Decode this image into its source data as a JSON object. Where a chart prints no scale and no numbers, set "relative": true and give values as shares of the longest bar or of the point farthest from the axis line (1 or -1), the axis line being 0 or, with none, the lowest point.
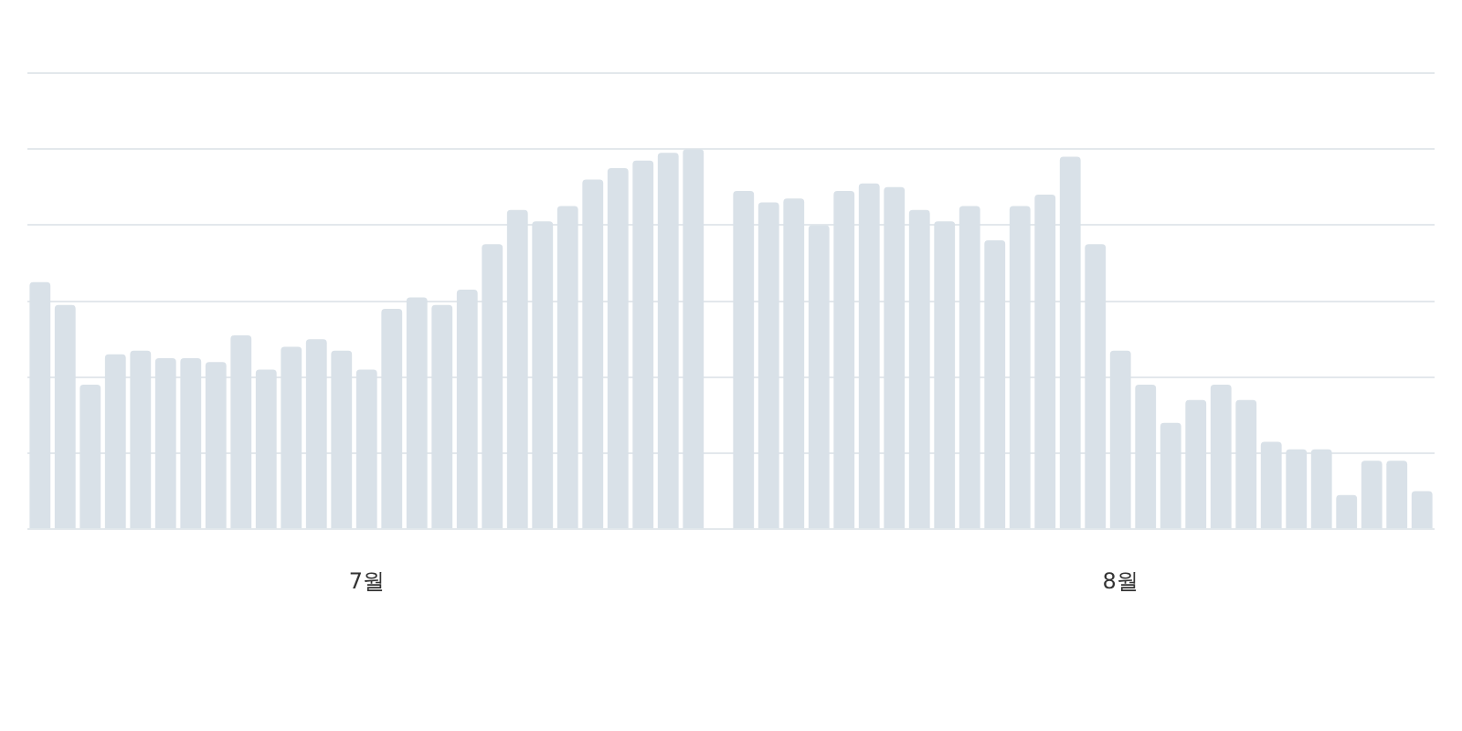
{
  "chart_data": {
    "type": "bar",
    "relative": true,
    "grid": "y",
    "legend": false,
    "tick_labels": "x",
    "categories": [
      null,
      null,
      null,
      null,
      null,
      null,
      null,
      null,
      null,
      null,
      null,
      null,
      null,
      "7월",
      null,
      null,
      null,
      null,
      null,
      null,
      null,
      null,
      null,
      null,
      null,
      null,
      null,
      null,
      null,
      null,
      null,
      null,
      null,
      null,
      null,
      null,
      null,
      null,
      null,
      null,
      null,
      null,
      null,
      "8월",
      null,
      null,
      null,
      null,
      null,
      null,
      null,
      null,
      null,
      null,
      null,
      null
    ],
    "series": [
      {
        "color": "#d9e1e8",
        "values": [
          0.65,
          0.59,
          0.38,
          0.46,
          0.47,
          0.45,
          0.45,
          0.44,
          0.51,
          0.42,
          0.48,
          0.5,
          0.47,
          0.42,
          0.58,
          0.61,
          0.59,
          0.63,
          0.75,
          0.84,
          0.81,
          0.85,
          0.92,
          0.95,
          0.97,
          0.99,
          1,
          null,
          0.89,
          0.86,
          0.87,
          0.8,
          0.89,
          0.91,
          0.9,
          0.84,
          0.81,
          0.85,
          0.76,
          0.85,
          0.88,
          0.98,
          0.75,
          0.47,
          0.38,
          0.28,
          0.34,
          0.38,
          0.34,
          0.23,
          0.21,
          0.21,
          0.09,
          0.18,
          0.18,
          0.1
        ]
      }
    ]
  }
}
